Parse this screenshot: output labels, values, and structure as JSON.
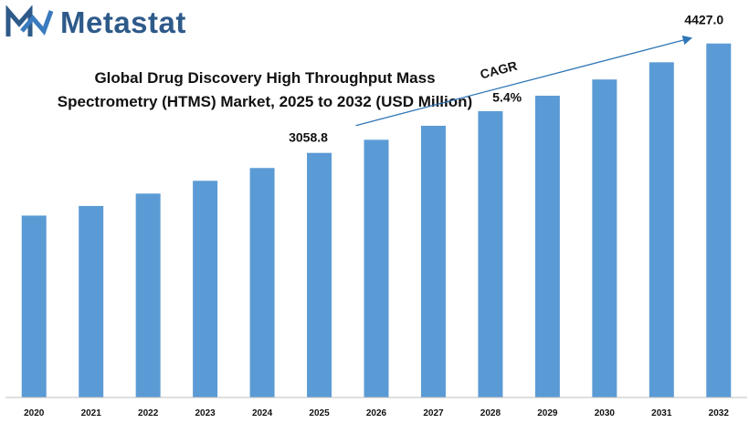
{
  "brand": {
    "name": "Metastat",
    "logo_icon": "metastat-m-logo-icon",
    "color": "#2e5a8a"
  },
  "chart_data": {
    "type": "bar",
    "title_lines": [
      "Global Drug Discovery High Throughput Mass",
      "Spectrometry (HTMS)  Market, 2025 to 2032 (USD Million)"
    ],
    "categories": [
      "2020",
      "2021",
      "2022",
      "2023",
      "2024",
      "2025",
      "2026",
      "2027",
      "2028",
      "2029",
      "2030",
      "2031",
      "2032"
    ],
    "values": [
      2275,
      2395,
      2550,
      2710,
      2870,
      3058.8,
      3223,
      3398,
      3581,
      3774,
      3977,
      4192,
      4427.0
    ],
    "data_labels": [
      {
        "category": "2025",
        "text": "3058.8"
      },
      {
        "category": "2032",
        "text": "4427.0"
      }
    ],
    "annotation": {
      "label": "CAGR",
      "value": "5.4%",
      "from": "2025",
      "to": "2032"
    },
    "ylim": [
      0,
      4800
    ],
    "bar_color": "#5b9bd5",
    "grid": false,
    "legend": "none"
  }
}
